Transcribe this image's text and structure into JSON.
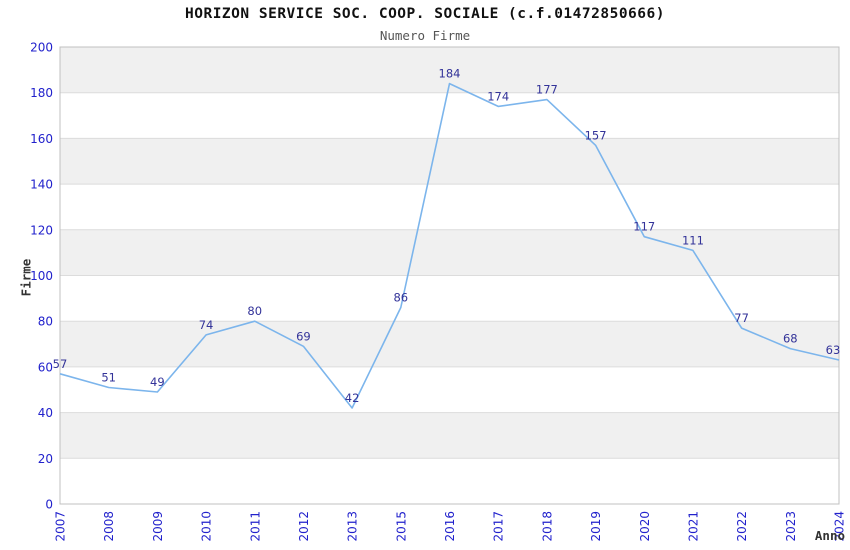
{
  "chart_data": {
    "type": "line",
    "title": "HORIZON SERVICE SOC. COOP. SOCIALE (c.f.01472850666)",
    "subtitle": "Numero Firme",
    "xlabel": "Anno",
    "ylabel": "Firme",
    "categories": [
      "2007",
      "2008",
      "2009",
      "2010",
      "2011",
      "2012",
      "2013",
      "2015",
      "2016",
      "2017",
      "2018",
      "2019",
      "2020",
      "2021",
      "2022",
      "2023",
      "2024"
    ],
    "values": [
      57,
      51,
      49,
      74,
      80,
      69,
      42,
      86,
      184,
      174,
      177,
      157,
      117,
      111,
      77,
      68,
      63
    ],
    "ylim": [
      0,
      200
    ],
    "ytick_step": 20,
    "grid": "horizontal",
    "plot_bands": "alternating",
    "legend": "none",
    "colors": {
      "line": "#7cb5ec",
      "point_label": "#333399",
      "tick_label": "#2222cc",
      "band": "#f0f0f0",
      "gridline": "#dcdcdc",
      "plot_border": "#c0c0c0",
      "title": "#111111",
      "subtitle": "#555555",
      "axis_title": "#333333",
      "background": "#ffffff"
    }
  }
}
